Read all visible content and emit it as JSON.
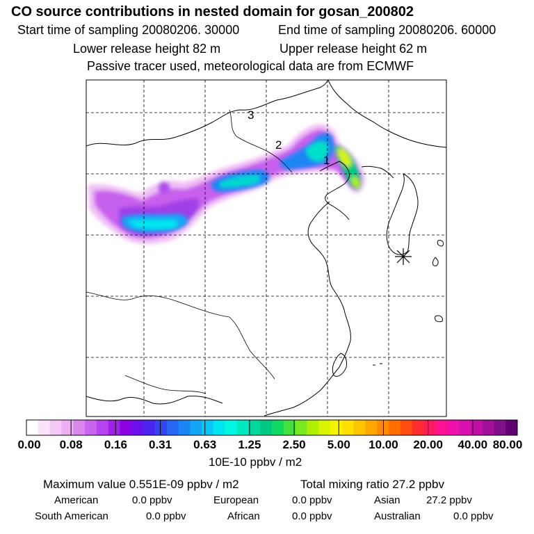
{
  "title": "CO  source contributions in nested domain for gosan_200802",
  "header": {
    "start_time": "Start time of sampling 20080206. 30000",
    "end_time": "End time of sampling 20080206. 60000",
    "lower_height": "Lower release height   82 m",
    "upper_height": "Upper release height   62 m",
    "note": "Passive tracer used, meteorological data are from ECMWF"
  },
  "map": {
    "markers": [
      {
        "label": "1"
      },
      {
        "label": "2"
      },
      {
        "label": "3"
      }
    ],
    "receptor": "gosan-station-star"
  },
  "colorbar": {
    "ticks": [
      "0.00",
      "0.08",
      "0.16",
      "0.31",
      "0.63",
      "1.25",
      "2.50",
      "5.00",
      "10.00",
      "20.00",
      "40.00",
      "80.00"
    ],
    "colors": [
      "#ffffff",
      "#fbe3fb",
      "#f4c9f6",
      "#eeaef2",
      "#d986f0",
      "#c964ef",
      "#b743ee",
      "#a120e8",
      "#8c00e4",
      "#6b10ea",
      "#4c24ee",
      "#3346f2",
      "#2a66f4",
      "#1a86f4",
      "#12a6f4",
      "#0ac6f2",
      "#00e6ee",
      "#00f6e0",
      "#00e8c0",
      "#00d8a0",
      "#00c882",
      "#10d860",
      "#44e040",
      "#7ae820",
      "#aef000",
      "#d8f400",
      "#f8f400",
      "#ffe000",
      "#ffc400",
      "#ffa800",
      "#ff8a00",
      "#ff6c00",
      "#ff4c10",
      "#ff2c30",
      "#ff1a60",
      "#fb1290",
      "#ee10a8",
      "#d810b0",
      "#c010a8",
      "#a01098",
      "#801088",
      "#600070"
    ],
    "units": "10E-10 ppbv / m2"
  },
  "footer": {
    "max_value": "Maximum value  0.551E-09 ppbv / m2",
    "total_mixing": "Total mixing ratio       27.2 ppbv",
    "american": "American",
    "american_val": "0.0 ppbv",
    "european": "European",
    "european_val": "0.0 ppbv",
    "asian": "Asian",
    "asian_val": "27.2 ppbv",
    "south_american": "South American",
    "south_american_val": "0.0 ppbv",
    "african": "African",
    "african_val": "0.0 ppbv",
    "australian": "Australian",
    "australian_val": "0.0 ppbv"
  }
}
